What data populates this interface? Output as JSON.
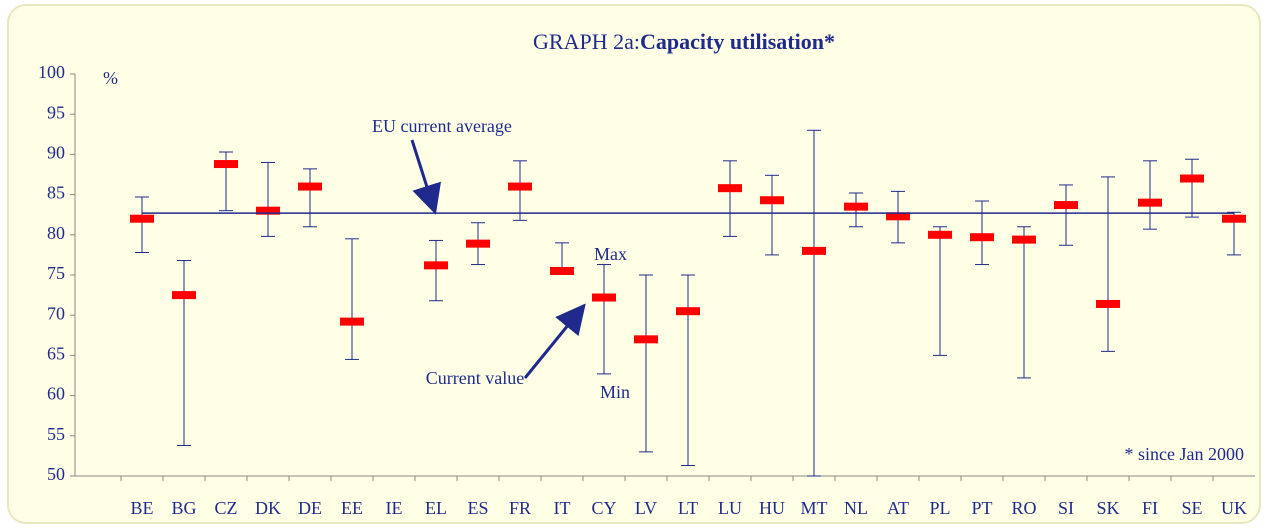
{
  "chart_data": {
    "type": "high-low",
    "title": "GRAPH 2a: ",
    "title_bold": "Capacity utilisation*",
    "y_label": "%",
    "annotations": {
      "average": "EU current average",
      "max": "Max",
      "min": "Min",
      "current": "Current value",
      "note": "* since Jan 2000"
    },
    "categories": [
      "BE",
      "BG",
      "CZ",
      "DK",
      "DE",
      "EE",
      "IE",
      "EL",
      "ES",
      "FR",
      "IT",
      "CY",
      "LV",
      "LT",
      "LU",
      "HU",
      "MT",
      "NL",
      "AT",
      "PL",
      "PT",
      "RO",
      "SI",
      "SK",
      "FI",
      "SE",
      "UK"
    ],
    "series": [
      {
        "name": "Current value",
        "color": "#ff0000",
        "values": [
          82,
          72.5,
          88.8,
          83,
          86,
          69.2,
          null,
          76.2,
          78.9,
          86,
          75.5,
          72.2,
          67,
          70.5,
          85.8,
          84.3,
          78,
          83.5,
          82.3,
          80,
          79.7,
          79.4,
          83.7,
          71.4,
          84,
          87,
          82
        ]
      },
      {
        "name": "Max",
        "color": "#1f2a8c",
        "values": [
          84.7,
          76.8,
          90.3,
          89,
          88.2,
          79.5,
          null,
          79.3,
          81.5,
          89.2,
          79,
          76.3,
          75,
          75,
          89.2,
          87.4,
          93,
          85.2,
          85.4,
          81,
          84.2,
          81,
          86.2,
          87.2,
          89.2,
          89.4,
          82.8
        ]
      },
      {
        "name": "Min",
        "color": "#1f2a8c",
        "values": [
          77.8,
          53.8,
          83,
          79.8,
          81,
          64.5,
          null,
          71.8,
          76.3,
          81.8,
          75.5,
          62.7,
          53,
          51.3,
          79.8,
          77.5,
          50,
          81,
          79,
          65,
          76.3,
          62.2,
          78.7,
          65.5,
          80.7,
          82.2,
          77.5
        ]
      }
    ],
    "average": 82.7,
    "ylim": [
      50,
      100
    ],
    "yticks": [
      50,
      55,
      60,
      65,
      70,
      75,
      80,
      85,
      90,
      95,
      100
    ]
  }
}
